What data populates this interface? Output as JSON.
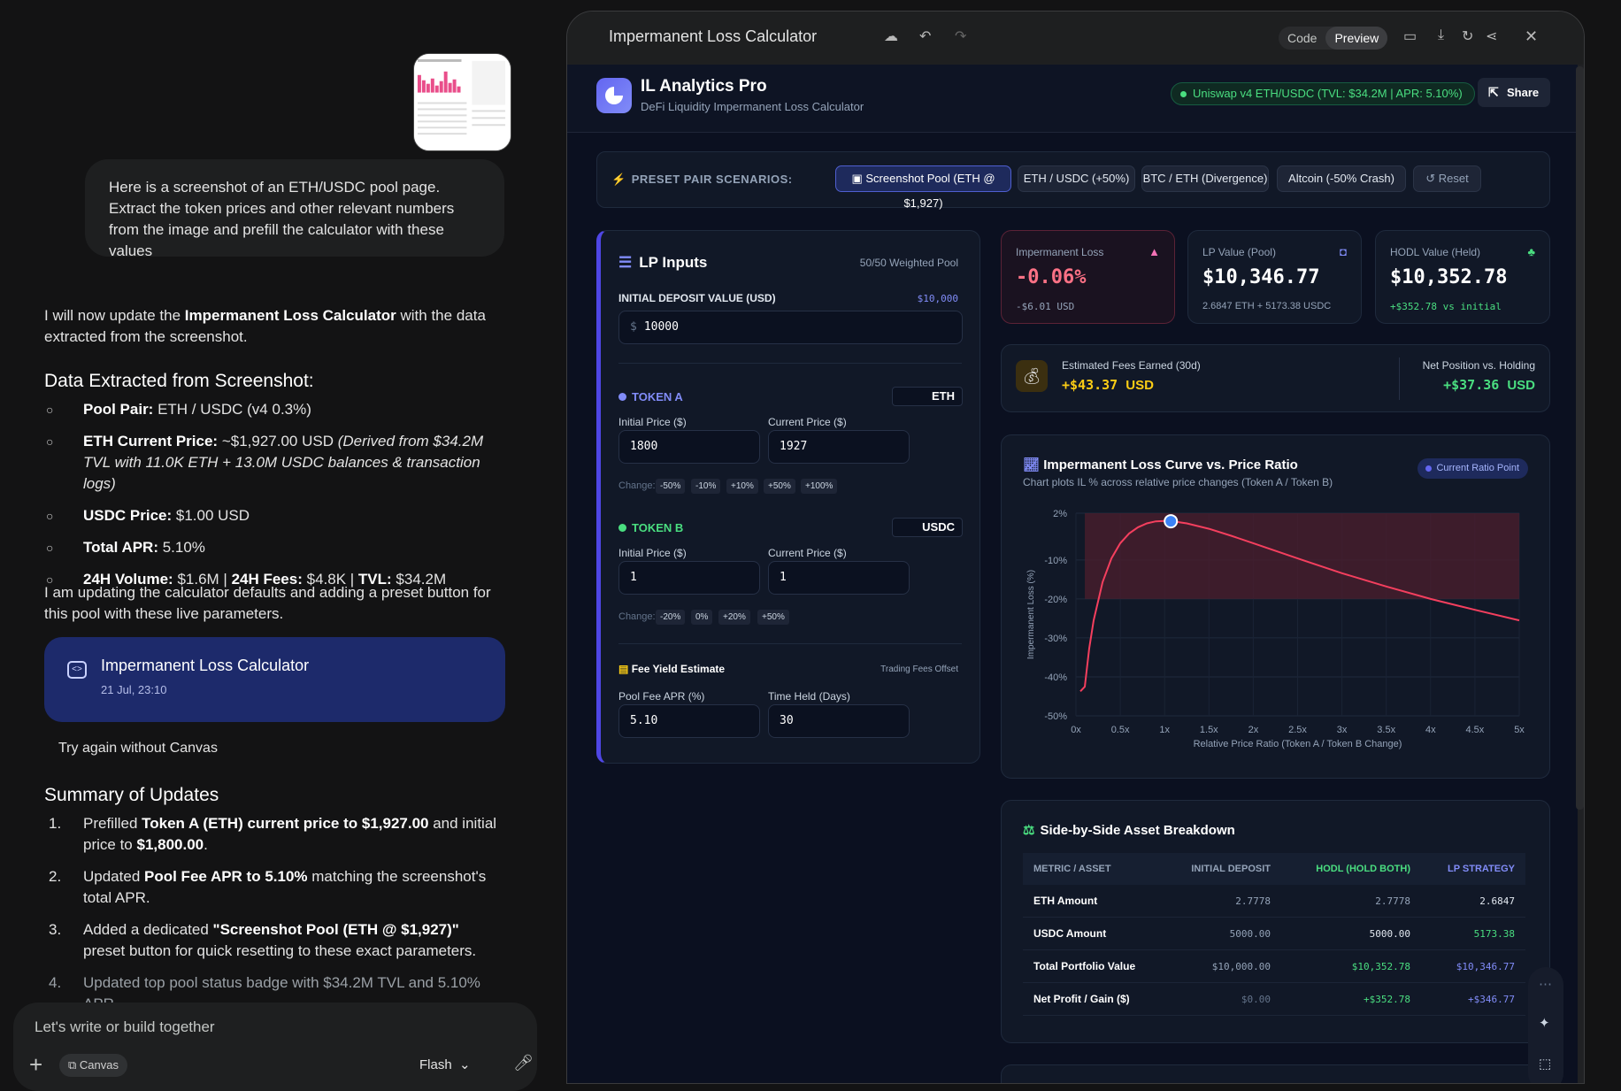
{
  "chat": {
    "user_message": "Here is a screenshot of an ETH/USDC pool page. Extract the token prices and other relevant numbers from the image and prefill the calculator with these values",
    "intro_pre": "I will now update the ",
    "intro_bold": "Impermanent Loss Calculator",
    "intro_post": " with the data extracted from the screenshot.",
    "extracted_heading": "Data Extracted from Screenshot:",
    "bullets": [
      {
        "bold": "Pool Pair:",
        "text": " ETH / USDC (v4 0.3%)",
        "italic": ""
      },
      {
        "bold": "ETH Current Price:",
        "text": " ~$1,927.00 USD ",
        "italic": "(Derived from $34.2M TVL with 11.0K ETH + 13.0M USDC balances & transaction logs)"
      },
      {
        "bold": "USDC Price:",
        "text": " $1.00 USD",
        "italic": ""
      },
      {
        "bold": "Total APR:",
        "text": " 5.10%",
        "italic": ""
      },
      {
        "bold": "24H Volume:",
        "text": " $1.6M | ",
        "bold2": "24H Fees:",
        "text2": " $4.8K | ",
        "bold3": "TVL:",
        "text3": " $34.2M"
      }
    ],
    "updating_text": "I am updating the calculator defaults and adding a preset button for this pool with these live parameters.",
    "canvas_card": {
      "title": "Impermanent Loss Calculator",
      "date": "21 Jul, 23:10",
      "icon": "code-icon"
    },
    "try_again": "Try again without Canvas",
    "summary_heading": "Summary of Updates",
    "summary": [
      {
        "n": "1.",
        "parts": [
          [
            "Prefilled ",
            false
          ],
          [
            "Token A (ETH) current price to $1,927.00",
            true
          ],
          [
            " and initial price to ",
            false
          ],
          [
            "$1,800.00",
            true
          ],
          [
            ".",
            false
          ]
        ]
      },
      {
        "n": "2.",
        "parts": [
          [
            "Updated ",
            false
          ],
          [
            "Pool Fee APR to 5.10%",
            true
          ],
          [
            " matching the screenshot's total APR.",
            false
          ]
        ]
      },
      {
        "n": "3.",
        "parts": [
          [
            "Added a dedicated ",
            false
          ],
          [
            "\"Screenshot Pool (ETH @ $1,927)\"",
            true
          ],
          [
            " preset button for quick resetting to these exact parameters.",
            false
          ]
        ]
      },
      {
        "n": "4.",
        "parts": [
          [
            "Updated top pool status badge with $34.2M TVL and 5.10% APR.",
            false
          ]
        ]
      }
    ],
    "composer_placeholder": "Let's write or build together",
    "canvas_chip": "Canvas",
    "model": "Flash"
  },
  "panel": {
    "title": "Impermanent Loss Calculator",
    "code_tab": "Code",
    "preview_tab": "Preview"
  },
  "app": {
    "brand": "IL Analytics Pro",
    "brand_sub": "DeFi Liquidity Impermanent Loss Calculator",
    "pool_badge": "Uniswap v4 ETH/USDC (TVL: $34.2M | APR: 5.10%)",
    "share": "Share",
    "presets_label": "PRESET PAIR SCENARIOS:",
    "presets": [
      "Screenshot Pool (ETH @ $1,927)",
      "ETH / USDC (+50%)",
      "BTC / ETH (Divergence)",
      "Altcoin (-50% Crash)",
      "Reset"
    ],
    "lp": {
      "title": "LP Inputs",
      "sub": "50/50 Weighted Pool",
      "deposit_label": "INITIAL DEPOSIT VALUE (USD)",
      "deposit_display": "$10,000",
      "deposit_prefix": "$",
      "deposit_value": "10000",
      "token_a_label": "TOKEN A",
      "token_a": "ETH",
      "token_b_label": "TOKEN B",
      "token_b": "USDC",
      "initial_price_label": "Initial Price ($)",
      "current_price_label": "Current Price ($)",
      "a_initial": "1800",
      "a_current": "1927",
      "b_initial": "1",
      "b_current": "1",
      "change_label": "Change:",
      "a_chips": [
        "-50%",
        "-10%",
        "+10%",
        "+50%",
        "+100%"
      ],
      "b_chips": [
        "-20%",
        "0%",
        "+20%",
        "+50%"
      ],
      "fee_title": "Fee Yield Estimate",
      "fee_sub": "Trading Fees Offset",
      "apr_label": "Pool Fee APR (%)",
      "apr_value": "5.10",
      "days_label": "Time Held (Days)",
      "days_value": "30"
    },
    "metrics": {
      "il_label": "Impermanent Loss",
      "il_value": "-0.06%",
      "il_sub": "-$6.01 USD",
      "lp_label": "LP Value (Pool)",
      "lp_value": "$10,346.77",
      "lp_sub": "2.6847 ETH + 5173.38 USDC",
      "hodl_label": "HODL Value (Held)",
      "hodl_value": "$10,352.78",
      "hodl_sub": "+$352.78 vs initial",
      "fees_label": "Estimated Fees Earned (30d)",
      "fees_value": "+$43.37",
      "fees_unit": "USD",
      "net_label": "Net Position vs. Holding",
      "net_value": "+$37.36",
      "net_unit": "USD"
    },
    "chart_title": "Impermanent Loss Curve vs. Price Ratio",
    "chart_sub": "Chart plots IL % across relative price changes (Token A / Token B)",
    "chart_pill": "Current Ratio Point",
    "table": {
      "title": "Side-by-Side Asset Breakdown",
      "headers": [
        "METRIC / ASSET",
        "INITIAL DEPOSIT",
        "HODL (HOLD BOTH)",
        "LP STRATEGY"
      ],
      "rows": [
        [
          "ETH Amount",
          "2.7778",
          "2.7778",
          "2.6847"
        ],
        [
          "USDC Amount",
          "5000.00",
          "5000.00",
          "5173.38"
        ],
        [
          "Total Portfolio Value",
          "$10,000.00",
          "$10,352.78",
          "$10,346.77"
        ],
        [
          "Net Profit / Gain ($)",
          "$0.00",
          "+$352.78",
          "+$346.77"
        ]
      ]
    }
  },
  "chart_data": {
    "type": "line",
    "title": "Impermanent Loss Curve vs. Price Ratio",
    "xlabel": "Relative Price Ratio (Token A / Token B Change)",
    "ylabel": "Impermanent Loss (%)",
    "x_ticks": [
      "0x",
      "0.5x",
      "1x",
      "1.5x",
      "2x",
      "2.5x",
      "3x",
      "3.5x",
      "4x",
      "4.5x",
      "5x"
    ],
    "y_ticks": [
      "2%",
      "-10%",
      "-20%",
      "-30%",
      "-40%",
      "-50%"
    ],
    "xlim": [
      0,
      5
    ],
    "ylim": [
      -50,
      2
    ],
    "series": [
      {
        "name": "Impermanent Loss",
        "x": [
          0.05,
          0.1,
          0.15,
          0.2,
          0.3,
          0.4,
          0.5,
          0.6,
          0.7,
          0.8,
          0.9,
          1.0,
          1.1,
          1.25,
          1.5,
          1.75,
          2,
          2.5,
          3,
          3.5,
          4,
          4.5,
          5
        ],
        "y": [
          -43.7,
          -42.5,
          -32.7,
          -25.5,
          -15.7,
          -9.6,
          -5.7,
          -3.2,
          -1.6,
          -0.6,
          -0.1,
          0,
          -0.1,
          -0.6,
          -2.0,
          -3.8,
          -5.7,
          -9.6,
          -13.4,
          -16.8,
          -20.0,
          -22.8,
          -25.5
        ]
      }
    ],
    "current_point": {
      "x": 1.07,
      "y": -0.06
    },
    "colors": {
      "line": "#f43f5e",
      "fill": "#4c1d2e",
      "point": "#3b82f6"
    }
  }
}
